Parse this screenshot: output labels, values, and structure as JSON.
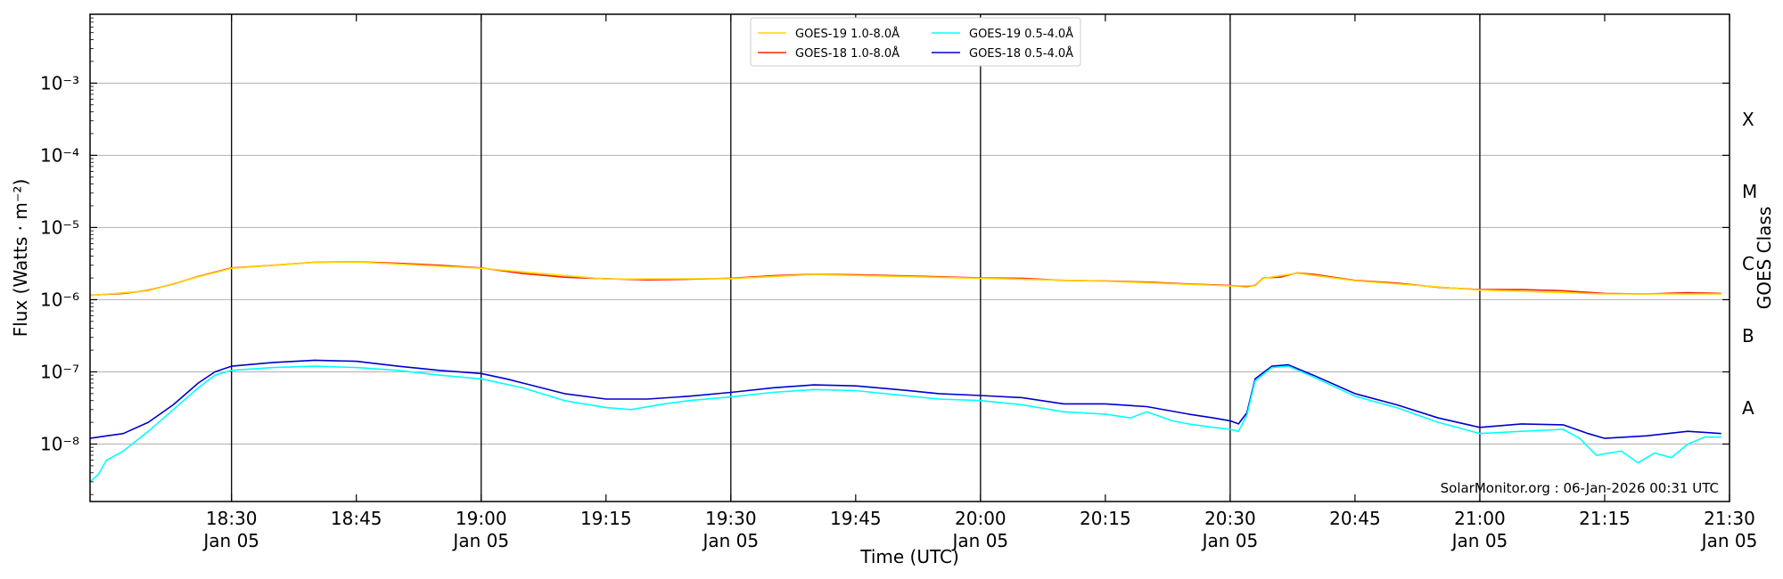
{
  "chart_data": {
    "type": "line",
    "xlabel": "Time (UTC)",
    "ylabel": "Flux (Watts · m⁻²)",
    "y2label": "GOES Class",
    "y_scale": "log",
    "ylim": [
      1.6e-09,
      0.009
    ],
    "xlim": [
      "2026-01-05 18:13",
      "2026-01-05 21:30"
    ],
    "grid": "horizontal",
    "legend_position": "top-center",
    "credit": "SolarMonitor.org : 06-Jan-2026 00:31 UTC",
    "x_ticks": [
      {
        "time": "2026-01-05 18:30",
        "label": "18:30",
        "sublabel": "Jan 05",
        "major": true
      },
      {
        "time": "2026-01-05 18:45",
        "label": "18:45",
        "sublabel": "",
        "major": false
      },
      {
        "time": "2026-01-05 19:00",
        "label": "19:00",
        "sublabel": "Jan 05",
        "major": true
      },
      {
        "time": "2026-01-05 19:15",
        "label": "19:15",
        "sublabel": "",
        "major": false
      },
      {
        "time": "2026-01-05 19:30",
        "label": "19:30",
        "sublabel": "Jan 05",
        "major": true
      },
      {
        "time": "2026-01-05 19:45",
        "label": "19:45",
        "sublabel": "",
        "major": false
      },
      {
        "time": "2026-01-05 20:00",
        "label": "20:00",
        "sublabel": "Jan 05",
        "major": true
      },
      {
        "time": "2026-01-05 20:15",
        "label": "20:15",
        "sublabel": "",
        "major": false
      },
      {
        "time": "2026-01-05 20:30",
        "label": "20:30",
        "sublabel": "Jan 05",
        "major": true
      },
      {
        "time": "2026-01-05 20:45",
        "label": "20:45",
        "sublabel": "",
        "major": false
      },
      {
        "time": "2026-01-05 21:00",
        "label": "21:00",
        "sublabel": "Jan 05",
        "major": true
      },
      {
        "time": "2026-01-05 21:15",
        "label": "21:15",
        "sublabel": "",
        "major": false
      },
      {
        "time": "2026-01-05 21:30",
        "label": "21:30",
        "sublabel": "Jan 05",
        "major": true
      }
    ],
    "y_ticks": [
      {
        "value": 1e-08,
        "label": "10⁻⁸"
      },
      {
        "value": 1e-07,
        "label": "10⁻⁷"
      },
      {
        "value": 1e-06,
        "label": "10⁻⁶"
      },
      {
        "value": 1e-05,
        "label": "10⁻⁵"
      },
      {
        "value": 0.0001,
        "label": "10⁻⁴"
      },
      {
        "value": 0.001,
        "label": "10⁻³"
      }
    ],
    "goes_classes": [
      {
        "label": "A",
        "value": 3.16e-08
      },
      {
        "label": "B",
        "value": 3.16e-07
      },
      {
        "label": "C",
        "value": 3.16e-06
      },
      {
        "label": "M",
        "value": 3.16e-05
      },
      {
        "label": "X",
        "value": 0.000316
      }
    ],
    "legend": [
      {
        "name": "GOES-19 1.0-8.0Å",
        "color": "#ffd700"
      },
      {
        "name": "GOES-18 1.0-8.0Å",
        "color": "#ff2200"
      },
      {
        "name": "GOES-19 0.5-4.0Å",
        "color": "#00ffff"
      },
      {
        "name": "GOES-18 0.5-4.0Å",
        "color": "#0000cc"
      }
    ],
    "series": [
      {
        "name": "GOES-18 1.0-8.0Å",
        "color": "#ff2200",
        "points": [
          [
            "2026-01-05 18:13",
            1.15e-06
          ],
          [
            "2026-01-05 18:17",
            1.22e-06
          ],
          [
            "2026-01-05 18:20",
            1.35e-06
          ],
          [
            "2026-01-05 18:23",
            1.65e-06
          ],
          [
            "2026-01-05 18:26",
            2.1e-06
          ],
          [
            "2026-01-05 18:30",
            2.75e-06
          ],
          [
            "2026-01-05 18:35",
            3e-06
          ],
          [
            "2026-01-05 18:40",
            3.3e-06
          ],
          [
            "2026-01-05 18:45",
            3.35e-06
          ],
          [
            "2026-01-05 18:50",
            3.2e-06
          ],
          [
            "2026-01-05 18:55",
            3e-06
          ],
          [
            "2026-01-05 19:00",
            2.75e-06
          ],
          [
            "2026-01-05 19:05",
            2.3e-06
          ],
          [
            "2026-01-05 19:10",
            2.05e-06
          ],
          [
            "2026-01-05 19:15",
            1.95e-06
          ],
          [
            "2026-01-05 19:20",
            1.88e-06
          ],
          [
            "2026-01-05 19:25",
            1.92e-06
          ],
          [
            "2026-01-05 19:30",
            1.98e-06
          ],
          [
            "2026-01-05 19:35",
            2.15e-06
          ],
          [
            "2026-01-05 19:40",
            2.25e-06
          ],
          [
            "2026-01-05 19:45",
            2.22e-06
          ],
          [
            "2026-01-05 19:50",
            2.15e-06
          ],
          [
            "2026-01-05 19:55",
            2.08e-06
          ],
          [
            "2026-01-05 20:00",
            2e-06
          ],
          [
            "2026-01-05 20:05",
            1.98e-06
          ],
          [
            "2026-01-05 20:10",
            1.85e-06
          ],
          [
            "2026-01-05 20:15",
            1.82e-06
          ],
          [
            "2026-01-05 20:20",
            1.75e-06
          ],
          [
            "2026-01-05 20:25",
            1.65e-06
          ],
          [
            "2026-01-05 20:30",
            1.57e-06
          ],
          [
            "2026-01-05 20:32",
            1.52e-06
          ],
          [
            "2026-01-05 20:33",
            1.58e-06
          ],
          [
            "2026-01-05 20:34",
            2e-06
          ],
          [
            "2026-01-05 20:36",
            2.05e-06
          ],
          [
            "2026-01-05 20:38",
            2.35e-06
          ],
          [
            "2026-01-05 20:40",
            2.25e-06
          ],
          [
            "2026-01-05 20:45",
            1.85e-06
          ],
          [
            "2026-01-05 20:50",
            1.7e-06
          ],
          [
            "2026-01-05 20:55",
            1.48e-06
          ],
          [
            "2026-01-05 21:00",
            1.38e-06
          ],
          [
            "2026-01-05 21:05",
            1.38e-06
          ],
          [
            "2026-01-05 21:10",
            1.33e-06
          ],
          [
            "2026-01-05 21:15",
            1.22e-06
          ],
          [
            "2026-01-05 21:20",
            1.2e-06
          ],
          [
            "2026-01-05 21:25",
            1.25e-06
          ],
          [
            "2026-01-05 21:29",
            1.22e-06
          ]
        ]
      },
      {
        "name": "GOES-19 1.0-8.0Å",
        "color": "#ffd700",
        "points": [
          [
            "2026-01-05 18:13",
            1.14e-06
          ],
          [
            "2026-01-05 18:20",
            1.33e-06
          ],
          [
            "2026-01-05 18:26",
            2.08e-06
          ],
          [
            "2026-01-05 18:30",
            2.72e-06
          ],
          [
            "2026-01-05 18:40",
            3.28e-06
          ],
          [
            "2026-01-05 18:45",
            3.33e-06
          ],
          [
            "2026-01-05 19:00",
            2.72e-06
          ],
          [
            "2026-01-05 19:15",
            1.93e-06
          ],
          [
            "2026-01-05 19:30",
            1.96e-06
          ],
          [
            "2026-01-05 19:40",
            2.23e-06
          ],
          [
            "2026-01-05 20:00",
            1.98e-06
          ],
          [
            "2026-01-05 20:15",
            1.8e-06
          ],
          [
            "2026-01-05 20:30",
            1.55e-06
          ],
          [
            "2026-01-05 20:33",
            1.56e-06
          ],
          [
            "2026-01-05 20:34",
            1.98e-06
          ],
          [
            "2026-01-05 20:38",
            2.33e-06
          ],
          [
            "2026-01-05 20:45",
            1.83e-06
          ],
          [
            "2026-01-05 21:00",
            1.36e-06
          ],
          [
            "2026-01-05 21:15",
            1.2e-06
          ],
          [
            "2026-01-05 21:29",
            1.2e-06
          ]
        ]
      },
      {
        "name": "GOES-18 0.5-4.0Å",
        "color": "#0000cc",
        "points": [
          [
            "2026-01-05 18:13",
            1.2e-08
          ],
          [
            "2026-01-05 18:15",
            1.3e-08
          ],
          [
            "2026-01-05 18:17",
            1.4e-08
          ],
          [
            "2026-01-05 18:20",
            2e-08
          ],
          [
            "2026-01-05 18:23",
            3.5e-08
          ],
          [
            "2026-01-05 18:26",
            7e-08
          ],
          [
            "2026-01-05 18:28",
            1e-07
          ],
          [
            "2026-01-05 18:30",
            1.2e-07
          ],
          [
            "2026-01-05 18:35",
            1.35e-07
          ],
          [
            "2026-01-05 18:40",
            1.45e-07
          ],
          [
            "2026-01-05 18:45",
            1.4e-07
          ],
          [
            "2026-01-05 18:50",
            1.2e-07
          ],
          [
            "2026-01-05 18:55",
            1.05e-07
          ],
          [
            "2026-01-05 19:00",
            9.5e-08
          ],
          [
            "2026-01-05 19:03",
            8e-08
          ],
          [
            "2026-01-05 19:05",
            7e-08
          ],
          [
            "2026-01-05 19:10",
            5e-08
          ],
          [
            "2026-01-05 19:15",
            4.2e-08
          ],
          [
            "2026-01-05 19:20",
            4.2e-08
          ],
          [
            "2026-01-05 19:25",
            4.6e-08
          ],
          [
            "2026-01-05 19:30",
            5.2e-08
          ],
          [
            "2026-01-05 19:35",
            6e-08
          ],
          [
            "2026-01-05 19:40",
            6.6e-08
          ],
          [
            "2026-01-05 19:45",
            6.4e-08
          ],
          [
            "2026-01-05 19:50",
            5.7e-08
          ],
          [
            "2026-01-05 19:55",
            5e-08
          ],
          [
            "2026-01-05 20:00",
            4.7e-08
          ],
          [
            "2026-01-05 20:05",
            4.4e-08
          ],
          [
            "2026-01-05 20:10",
            3.6e-08
          ],
          [
            "2026-01-05 20:15",
            3.6e-08
          ],
          [
            "2026-01-05 20:20",
            3.3e-08
          ],
          [
            "2026-01-05 20:25",
            2.6e-08
          ],
          [
            "2026-01-05 20:28",
            2.3e-08
          ],
          [
            "2026-01-05 20:30",
            2.1e-08
          ],
          [
            "2026-01-05 20:31",
            1.9e-08
          ],
          [
            "2026-01-05 20:32",
            2.7e-08
          ],
          [
            "2026-01-05 20:33",
            8e-08
          ],
          [
            "2026-01-05 20:35",
            1.2e-07
          ],
          [
            "2026-01-05 20:37",
            1.25e-07
          ],
          [
            "2026-01-05 20:40",
            9e-08
          ],
          [
            "2026-01-05 20:45",
            5e-08
          ],
          [
            "2026-01-05 20:50",
            3.5e-08
          ],
          [
            "2026-01-05 20:55",
            2.3e-08
          ],
          [
            "2026-01-05 21:00",
            1.7e-08
          ],
          [
            "2026-01-05 21:05",
            1.9e-08
          ],
          [
            "2026-01-05 21:10",
            1.85e-08
          ],
          [
            "2026-01-05 21:13",
            1.4e-08
          ],
          [
            "2026-01-05 21:15",
            1.2e-08
          ],
          [
            "2026-01-05 21:20",
            1.3e-08
          ],
          [
            "2026-01-05 21:25",
            1.5e-08
          ],
          [
            "2026-01-05 21:29",
            1.4e-08
          ]
        ]
      },
      {
        "name": "GOES-19 0.5-4.0Å",
        "color": "#00ffff",
        "points": [
          [
            "2026-01-05 18:13",
            3e-09
          ],
          [
            "2026-01-05 18:14",
            3.8e-09
          ],
          [
            "2026-01-05 18:15",
            6e-09
          ],
          [
            "2026-01-05 18:17",
            8e-09
          ],
          [
            "2026-01-05 18:20",
            1.5e-08
          ],
          [
            "2026-01-05 18:23",
            3e-08
          ],
          [
            "2026-01-05 18:26",
            6e-08
          ],
          [
            "2026-01-05 18:28",
            9e-08
          ],
          [
            "2026-01-05 18:30",
            1.05e-07
          ],
          [
            "2026-01-05 18:35",
            1.15e-07
          ],
          [
            "2026-01-05 18:40",
            1.2e-07
          ],
          [
            "2026-01-05 18:45",
            1.15e-07
          ],
          [
            "2026-01-05 18:50",
            1.05e-07
          ],
          [
            "2026-01-05 18:55",
            9e-08
          ],
          [
            "2026-01-05 19:00",
            8e-08
          ],
          [
            "2026-01-05 19:05",
            6e-08
          ],
          [
            "2026-01-05 19:10",
            4e-08
          ],
          [
            "2026-01-05 19:15",
            3.2e-08
          ],
          [
            "2026-01-05 19:18",
            3e-08
          ],
          [
            "2026-01-05 19:22",
            3.6e-08
          ],
          [
            "2026-01-05 19:25",
            4e-08
          ],
          [
            "2026-01-05 19:30",
            4.5e-08
          ],
          [
            "2026-01-05 19:35",
            5.2e-08
          ],
          [
            "2026-01-05 19:40",
            5.7e-08
          ],
          [
            "2026-01-05 19:45",
            5.5e-08
          ],
          [
            "2026-01-05 19:50",
            4.8e-08
          ],
          [
            "2026-01-05 19:55",
            4.2e-08
          ],
          [
            "2026-01-05 20:00",
            4e-08
          ],
          [
            "2026-01-05 20:05",
            3.5e-08
          ],
          [
            "2026-01-05 20:10",
            2.8e-08
          ],
          [
            "2026-01-05 20:15",
            2.6e-08
          ],
          [
            "2026-01-05 20:18",
            2.3e-08
          ],
          [
            "2026-01-05 20:20",
            2.8e-08
          ],
          [
            "2026-01-05 20:23",
            2.1e-08
          ],
          [
            "2026-01-05 20:25",
            1.9e-08
          ],
          [
            "2026-01-05 20:28",
            1.7e-08
          ],
          [
            "2026-01-05 20:30",
            1.6e-08
          ],
          [
            "2026-01-05 20:31",
            1.5e-08
          ],
          [
            "2026-01-05 20:32",
            2.5e-08
          ],
          [
            "2026-01-05 20:33",
            7.5e-08
          ],
          [
            "2026-01-05 20:35",
            1.15e-07
          ],
          [
            "2026-01-05 20:37",
            1.2e-07
          ],
          [
            "2026-01-05 20:40",
            8.5e-08
          ],
          [
            "2026-01-05 20:45",
            4.6e-08
          ],
          [
            "2026-01-05 20:50",
            3.2e-08
          ],
          [
            "2026-01-05 20:55",
            2e-08
          ],
          [
            "2026-01-05 21:00",
            1.4e-08
          ],
          [
            "2026-01-05 21:05",
            1.5e-08
          ],
          [
            "2026-01-05 21:10",
            1.6e-08
          ],
          [
            "2026-01-05 21:12",
            1.2e-08
          ],
          [
            "2026-01-05 21:14",
            7e-09
          ],
          [
            "2026-01-05 21:17",
            8e-09
          ],
          [
            "2026-01-05 21:19",
            5.5e-09
          ],
          [
            "2026-01-05 21:21",
            7.5e-09
          ],
          [
            "2026-01-05 21:23",
            6.5e-09
          ],
          [
            "2026-01-05 21:25",
            1e-08
          ],
          [
            "2026-01-05 21:27",
            1.25e-08
          ],
          [
            "2026-01-05 21:29",
            1.25e-08
          ]
        ]
      }
    ]
  }
}
